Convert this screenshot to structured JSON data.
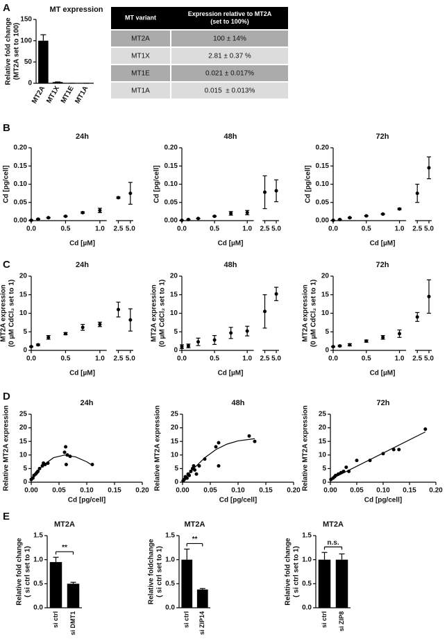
{
  "chart_data": [
    {
      "type": "bar",
      "panel": "A",
      "title": "MT expression",
      "ylabel": [
        "Relative fold change",
        "(MT2A set to 100)"
      ],
      "categories": [
        "MT2A",
        "MT1X",
        "MT1E",
        "MT1A"
      ],
      "values": [
        100,
        2.81,
        0.021,
        0.015
      ],
      "errors": [
        14,
        0.37,
        0.017,
        0.013
      ],
      "color": "#000000",
      "ylim": [
        0,
        150
      ],
      "yticks": [
        0,
        50,
        100,
        150
      ]
    },
    {
      "type": "errorscatter",
      "panel": "B",
      "title": "24h",
      "xlabel": "Cd [µM]",
      "ylabel": [
        "Cd [pg/cell]"
      ],
      "x": [
        0,
        0.1,
        0.25,
        0.5,
        0.75,
        1.0,
        2.5,
        5.0
      ],
      "values": [
        0.001,
        0.004,
        0.008,
        0.012,
        0.022,
        0.028,
        0.063,
        0.075
      ],
      "errors": [
        0.001,
        0.001,
        0.001,
        0.001,
        0.002,
        0.006,
        0.002,
        0.03
      ],
      "color": "#000000",
      "xlim_segments": [
        [
          0,
          1.1
        ],
        [
          2.0,
          5.6
        ]
      ],
      "xticks": [
        {
          "value": 0,
          "label": "0.0"
        },
        {
          "value": 0.5,
          "label": "0.5"
        },
        {
          "value": 1,
          "label": "1.0"
        },
        {
          "value": 2.5,
          "label": "2.5"
        },
        {
          "value": 5,
          "label": "5.0"
        }
      ],
      "ylim": [
        0,
        0.2
      ],
      "yticks": [
        {
          "value": 0,
          "label": "0.00"
        },
        {
          "value": 0.05,
          "label": "0.05"
        },
        {
          "value": 0.1,
          "label": "0.10"
        },
        {
          "value": 0.15,
          "label": "0.15"
        },
        {
          "value": 0.2,
          "label": "0.20"
        }
      ]
    },
    {
      "type": "errorscatter",
      "title": "48h",
      "xlabel": "Cd [µM]",
      "ylabel": [
        "Cd [pg/cell]"
      ],
      "x": [
        0,
        0.1,
        0.25,
        0.5,
        0.75,
        1.0,
        2.5,
        5.0
      ],
      "values": [
        0.001,
        0.003,
        0.006,
        0.012,
        0.02,
        0.022,
        0.078,
        0.082
      ],
      "errors": [
        0.0005,
        0.0005,
        0.0005,
        0.001,
        0.005,
        0.006,
        0.045,
        0.03
      ],
      "color": "#000000",
      "xlim_segments": [
        [
          0,
          1.1
        ],
        [
          2.0,
          5.6
        ]
      ],
      "xticks": [
        {
          "value": 0,
          "label": "0.0"
        },
        {
          "value": 0.5,
          "label": "0.5"
        },
        {
          "value": 1,
          "label": "1.0"
        },
        {
          "value": 2.5,
          "label": "2.5"
        },
        {
          "value": 5,
          "label": "5.0"
        }
      ],
      "ylim": [
        0,
        0.2
      ],
      "yticks": [
        {
          "value": 0,
          "label": "0.00"
        },
        {
          "value": 0.05,
          "label": "0.05"
        },
        {
          "value": 0.1,
          "label": "0.10"
        },
        {
          "value": 0.15,
          "label": "0.15"
        },
        {
          "value": 0.2,
          "label": "0.20"
        }
      ]
    },
    {
      "type": "errorscatter",
      "title": "72h",
      "xlabel": "Cd [µM]",
      "ylabel": [
        "Cd [pg/cell]"
      ],
      "x": [
        0,
        0.1,
        0.25,
        0.5,
        0.75,
        1.0,
        2.5,
        5.0
      ],
      "values": [
        0.001,
        0.003,
        0.008,
        0.013,
        0.018,
        0.032,
        0.075,
        0.145
      ],
      "errors": [
        0.0005,
        0.0005,
        0.001,
        0.001,
        0.001,
        0.002,
        0.025,
        0.03
      ],
      "color": "#000000",
      "xlim_segments": [
        [
          0,
          1.1
        ],
        [
          2.0,
          5.6
        ]
      ],
      "xticks": [
        {
          "value": 0,
          "label": "0.0"
        },
        {
          "value": 0.5,
          "label": "0.5"
        },
        {
          "value": 1,
          "label": "1.0"
        },
        {
          "value": 2.5,
          "label": "2.5"
        },
        {
          "value": 5,
          "label": "5.0"
        }
      ],
      "ylim": [
        0,
        0.2
      ],
      "yticks": [
        {
          "value": 0,
          "label": "0.00"
        },
        {
          "value": 0.05,
          "label": "0.05"
        },
        {
          "value": 0.1,
          "label": "0.10"
        },
        {
          "value": 0.15,
          "label": "0.15"
        },
        {
          "value": 0.2,
          "label": "0.20"
        }
      ]
    },
    {
      "type": "errorscatter",
      "panel": "C",
      "title": "24h",
      "xlabel": "Cd [µM]",
      "ylabel": [
        "MT2A expression",
        "(0 µM CdCl₂ set to 1)"
      ],
      "x": [
        0,
        0.1,
        0.25,
        0.5,
        0.75,
        1.0,
        2.5,
        5.0
      ],
      "values": [
        1,
        1.5,
        3.5,
        4.5,
        6.2,
        7,
        11,
        8.2
      ],
      "errors": [
        0.1,
        0.2,
        0.5,
        0.3,
        0.8,
        0.6,
        2,
        3
      ],
      "color": "#000000",
      "xlim_segments": [
        [
          0,
          1.1
        ],
        [
          2.0,
          5.6
        ]
      ],
      "xticks": [
        {
          "value": 0,
          "label": "0.0"
        },
        {
          "value": 0.5,
          "label": "0.5"
        },
        {
          "value": 1,
          "label": "1.0"
        },
        {
          "value": 2.5,
          "label": "2.5"
        },
        {
          "value": 5,
          "label": "5.0"
        }
      ],
      "ylim": [
        0,
        20
      ],
      "yticks": [
        0,
        5,
        10,
        15,
        20
      ]
    },
    {
      "type": "errorscatter",
      "title": "48h",
      "xlabel": "Cd [µM]",
      "ylabel": [
        "MT2A expression",
        "(0 µM CdCl₂ set to 1)"
      ],
      "x": [
        0,
        0.1,
        0.25,
        0.5,
        0.75,
        1.0,
        2.5,
        5.0
      ],
      "values": [
        1,
        1.2,
        2.3,
        2.8,
        4.7,
        5.2,
        10.5,
        15.2
      ],
      "errors": [
        0.5,
        0.5,
        1,
        1.2,
        1.5,
        1.3,
        4.5,
        1.8
      ],
      "color": "#000000",
      "xlim_segments": [
        [
          0,
          1.1
        ],
        [
          2.0,
          5.6
        ]
      ],
      "xticks": [
        {
          "value": 0,
          "label": "0.0"
        },
        {
          "value": 0.5,
          "label": "0.5"
        },
        {
          "value": 1,
          "label": "1.0"
        },
        {
          "value": 2.5,
          "label": "2.5"
        },
        {
          "value": 5,
          "label": "5.0"
        }
      ],
      "ylim": [
        0,
        20
      ],
      "yticks": [
        0,
        5,
        10,
        15,
        20
      ]
    },
    {
      "type": "errorscatter",
      "title": "72h",
      "xlabel": "Cd [µM]",
      "ylabel": [
        "MT2A expression",
        "(0 µM CdCl₂ set to 1)"
      ],
      "x": [
        0,
        0.1,
        0.25,
        0.5,
        0.75,
        1.0,
        2.5,
        5.0
      ],
      "values": [
        1,
        1.2,
        1.5,
        2.5,
        3.5,
        4.5,
        9,
        14.5
      ],
      "errors": [
        0.1,
        0.2,
        0.3,
        0.3,
        0.5,
        1,
        1.2,
        4.5
      ],
      "color": "#000000",
      "xlim_segments": [
        [
          0,
          1.1
        ],
        [
          2.0,
          5.6
        ]
      ],
      "xticks": [
        {
          "value": 0,
          "label": "0.0"
        },
        {
          "value": 0.5,
          "label": "0.5"
        },
        {
          "value": 1,
          "label": "1.0"
        },
        {
          "value": 2.5,
          "label": "2.5"
        },
        {
          "value": 5,
          "label": "5.0"
        }
      ],
      "ylim": [
        0,
        20
      ],
      "yticks": [
        0,
        5,
        10,
        15,
        20
      ]
    },
    {
      "type": "scatter",
      "panel": "D",
      "title": "24h",
      "xlabel": "Cd [pg/cell]",
      "ylabel": [
        "Relative MT2A expression"
      ],
      "x": [
        0,
        0.003,
        0.005,
        0.008,
        0.01,
        0.012,
        0.015,
        0.02,
        0.022,
        0.025,
        0.03,
        0.06,
        0.062,
        0.065,
        0.063,
        0.07,
        0.11
      ],
      "values": [
        1,
        1.5,
        2.5,
        3,
        3.5,
        4,
        5,
        6,
        7,
        6.5,
        7,
        11,
        13,
        10,
        6.5,
        9.5,
        6.5
      ],
      "fit": {
        "x": [
          0,
          0.02,
          0.04,
          0.06,
          0.08,
          0.1,
          0.11
        ],
        "values": [
          1,
          6,
          9,
          10,
          9.3,
          7.5,
          6.2
        ]
      },
      "color": "#000000",
      "xlim": [
        0,
        0.2
      ],
      "xticks": [
        {
          "value": 0,
          "label": "0.00"
        },
        {
          "value": 0.05,
          "label": "0.05"
        },
        {
          "value": 0.1,
          "label": "0.10"
        },
        {
          "value": 0.15,
          "label": "0.15"
        },
        {
          "value": 0.2,
          "label": "0.20"
        }
      ],
      "ylim": [
        0,
        25
      ],
      "yticks": [
        0,
        5,
        10,
        15,
        20,
        25
      ]
    },
    {
      "type": "scatter",
      "title": "48h",
      "xlabel": "Cd [pg/cell]",
      "ylabel": [
        "Relative MT2A expression"
      ],
      "x": [
        0.001,
        0.003,
        0.005,
        0.008,
        0.01,
        0.012,
        0.015,
        0.018,
        0.02,
        0.022,
        0.025,
        0.03,
        0.04,
        0.06,
        0.065,
        0.065,
        0.12,
        0.13
      ],
      "values": [
        0.5,
        1,
        2,
        1.5,
        3,
        2.5,
        4,
        5,
        6,
        4.5,
        3,
        6,
        8.5,
        13,
        14.5,
        6,
        17,
        15
      ],
      "fit": {
        "x": [
          0,
          0.02,
          0.04,
          0.06,
          0.08,
          0.1,
          0.13
        ],
        "values": [
          0.5,
          5,
          9,
          12,
          14,
          15.2,
          16
        ]
      },
      "color": "#000000",
      "xlim": [
        0,
        0.2
      ],
      "xticks": [
        {
          "value": 0,
          "label": "0.00"
        },
        {
          "value": 0.05,
          "label": "0.05"
        },
        {
          "value": 0.1,
          "label": "0.10"
        },
        {
          "value": 0.15,
          "label": "0.15"
        },
        {
          "value": 0.2,
          "label": "0.20"
        }
      ],
      "ylim": [
        0,
        25
      ],
      "yticks": [
        0,
        5,
        10,
        15,
        20,
        25
      ]
    },
    {
      "type": "scatter",
      "title": "72h",
      "xlabel": "Cd [pg/cell]",
      "ylabel": [
        "Relative MT2A expression"
      ],
      "x": [
        0.001,
        0.005,
        0.008,
        0.01,
        0.015,
        0.02,
        0.025,
        0.03,
        0.035,
        0.05,
        0.075,
        0.1,
        0.12,
        0.13,
        0.18
      ],
      "values": [
        1,
        1.5,
        2,
        2.5,
        3,
        3.5,
        4,
        5.5,
        4,
        8,
        8,
        10.5,
        12,
        12,
        19.5
      ],
      "fit": {
        "x": [
          0,
          0.18
        ],
        "values": [
          1,
          18.5
        ]
      },
      "color": "#000000",
      "xlim": [
        0,
        0.2
      ],
      "xticks": [
        {
          "value": 0,
          "label": "0.00"
        },
        {
          "value": 0.05,
          "label": "0.05"
        },
        {
          "value": 0.1,
          "label": "0.10"
        },
        {
          "value": 0.15,
          "label": "0.15"
        },
        {
          "value": 0.2,
          "label": "0.20"
        }
      ],
      "ylim": [
        0,
        25
      ],
      "yticks": [
        0,
        5,
        10,
        15,
        20,
        25
      ]
    },
    {
      "type": "bar",
      "panel": "E",
      "title": "MT2A",
      "ylabel": [
        "Relative fold change",
        "( si ctrl set to 1)"
      ],
      "categories": [
        "si ctrl",
        "si DMT1"
      ],
      "values": [
        0.95,
        0.5
      ],
      "errors": [
        0.1,
        0.03
      ],
      "significance": "**",
      "color": "#000000",
      "ylim": [
        0,
        1.5
      ],
      "yticks": [
        {
          "value": 0,
          "label": "0.0"
        },
        {
          "value": 0.5,
          "label": "0.5"
        },
        {
          "value": 1,
          "label": "1.0"
        },
        {
          "value": 1.5,
          "label": "1.5"
        }
      ]
    },
    {
      "type": "bar",
      "title": "MT2A",
      "ylabel": [
        "Relative foldchange",
        "( si ctrl set to 1)"
      ],
      "categories": [
        "si ctrl",
        "si ZIP14"
      ],
      "values": [
        1.0,
        0.38
      ],
      "errors": [
        0.22,
        0.02
      ],
      "significance": "**",
      "color": "#000000",
      "ylim": [
        0,
        1.5
      ],
      "yticks": [
        {
          "value": 0,
          "label": "0.0"
        },
        {
          "value": 0.5,
          "label": "0.5"
        },
        {
          "value": 1,
          "label": "1.0"
        },
        {
          "value": 1.5,
          "label": "1.5"
        }
      ]
    },
    {
      "type": "bar",
      "title": "MT2A",
      "ylabel": [
        "Relative fold change",
        "( si ctrl set to 1)"
      ],
      "categories": [
        "si ctrl",
        "si ZIP8"
      ],
      "values": [
        1.0,
        1.0
      ],
      "errors": [
        0.15,
        0.12
      ],
      "significance": "n.s.",
      "color": "#000000",
      "ylim": [
        0,
        1.5
      ],
      "yticks": [
        {
          "value": 0,
          "label": "0.0"
        },
        {
          "value": 0.5,
          "label": "0.5"
        },
        {
          "value": 1,
          "label": "1.0"
        },
        {
          "value": 1.5,
          "label": "1.5"
        }
      ]
    }
  ],
  "table": {
    "columns": [
      [
        "MT variant"
      ],
      [
        "Expression relative to MT2A",
        "(set to 100%)"
      ]
    ],
    "rows": [
      [
        "MT2A",
        "100 ± 14%"
      ],
      [
        "MT1X",
        "2.81 ± 0.37 %"
      ],
      [
        "MT1E",
        "0.021 ± 0.017%"
      ],
      [
        "MT1A",
        "0.015  ± 0.013%"
      ]
    ]
  }
}
